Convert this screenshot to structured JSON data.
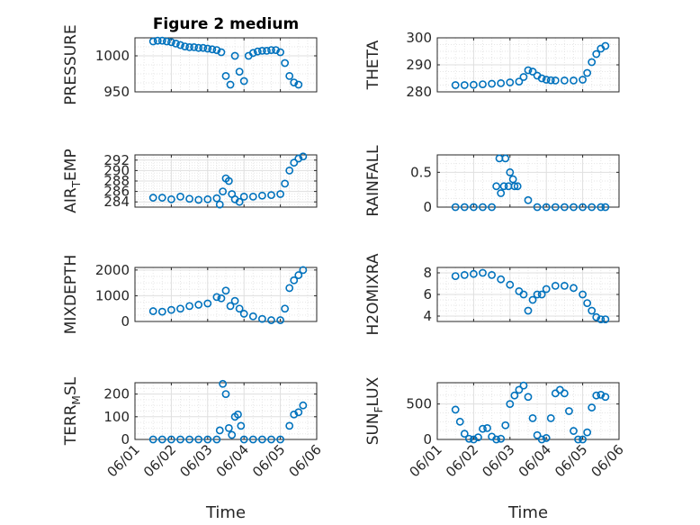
{
  "chart_data": [
    {
      "type": "scatter",
      "title": "Figure 2 medium",
      "ylabel": "PRESSURE",
      "xlim": [
        "06/01",
        "06/06"
      ],
      "ylim": [
        950,
        1025
      ],
      "yticks": [
        950,
        1000
      ],
      "xticks": [],
      "grid": true,
      "marker_color": "#0072BD",
      "series": [
        {
          "x": [
            "06/01 12:00",
            "06/01 15:00",
            "06/01 18:00",
            "06/01 21:00",
            "06/02 00:00",
            "06/02 03:00",
            "06/02 06:00",
            "06/02 09:00",
            "06/02 12:00",
            "06/02 15:00",
            "06/02 18:00",
            "06/02 21:00",
            "06/03 00:00",
            "06/03 03:00",
            "06/03 06:00",
            "06/03 09:00",
            "06/03 12:00",
            "06/03 15:00",
            "06/03 18:00",
            "06/03 21:00",
            "06/04 00:00",
            "06/04 03:00",
            "06/04 06:00",
            "06/04 09:00",
            "06/04 12:00",
            "06/04 15:00",
            "06/04 18:00",
            "06/04 21:00",
            "06/05 00:00",
            "06/05 03:00",
            "06/05 06:00",
            "06/05 09:00",
            "06/05 12:00"
          ],
          "y": [
            1020,
            1021,
            1021,
            1020,
            1019,
            1017,
            1015,
            1013,
            1012,
            1012,
            1011,
            1011,
            1010,
            1009,
            1008,
            1005,
            972,
            960,
            1000,
            978,
            965,
            1000,
            1004,
            1006,
            1007,
            1007,
            1008,
            1008,
            1005,
            990,
            972,
            963,
            960
          ]
        }
      ]
    },
    {
      "type": "scatter",
      "ylabel": "THETA",
      "xlim": [
        "06/01",
        "06/06"
      ],
      "ylim": [
        280,
        300
      ],
      "yticks": [
        280,
        290,
        300
      ],
      "grid": true,
      "marker_color": "#0072BD",
      "series": [
        {
          "x": [
            "06/01 12:00",
            "06/01 18:00",
            "06/02 00:00",
            "06/02 06:00",
            "06/02 12:00",
            "06/02 18:00",
            "06/03 00:00",
            "06/03 06:00",
            "06/03 09:00",
            "06/03 12:00",
            "06/03 15:00",
            "06/03 18:00",
            "06/03 21:00",
            "06/04 00:00",
            "06/04 03:00",
            "06/04 06:00",
            "06/04 12:00",
            "06/04 18:00",
            "06/05 00:00",
            "06/05 03:00",
            "06/05 06:00",
            "06/05 09:00",
            "06/05 12:00",
            "06/05 15:00"
          ],
          "y": [
            282.5,
            282.5,
            282.6,
            282.8,
            283.0,
            283.2,
            283.5,
            283.8,
            285.5,
            288.0,
            287.5,
            286.0,
            285.0,
            284.5,
            284.3,
            284.2,
            284.2,
            284.2,
            284.5,
            287.0,
            291.0,
            294.0,
            296.0,
            297.0
          ]
        }
      ]
    },
    {
      "type": "scatter",
      "ylabel": "AIR_TEMP",
      "ylabel_main": "AIR",
      "ylabel_sub": "T",
      "ylabel_rest": "EMP",
      "xlim": [
        "06/01",
        "06/06"
      ],
      "ylim": [
        283,
        293
      ],
      "yticks": [
        284,
        286,
        288,
        290,
        292
      ],
      "grid": true,
      "marker_color": "#0072BD",
      "series": [
        {
          "x": [
            "06/01 12:00",
            "06/01 18:00",
            "06/02 00:00",
            "06/02 06:00",
            "06/02 12:00",
            "06/02 18:00",
            "06/03 00:00",
            "06/03 06:00",
            "06/03 08:00",
            "06/03 10:00",
            "06/03 12:00",
            "06/03 14:00",
            "06/03 16:00",
            "06/03 18:00",
            "06/03 21:00",
            "06/04 00:00",
            "06/04 06:00",
            "06/04 12:00",
            "06/04 18:00",
            "06/05 00:00",
            "06/05 03:00",
            "06/05 06:00",
            "06/05 09:00",
            "06/05 12:00",
            "06/05 15:00"
          ],
          "y": [
            284.8,
            284.8,
            284.5,
            285.0,
            284.6,
            284.4,
            284.5,
            284.7,
            283.5,
            286.0,
            288.5,
            288.0,
            285.5,
            284.5,
            284.0,
            285.0,
            285.0,
            285.2,
            285.3,
            285.5,
            287.5,
            290.0,
            291.5,
            292.3,
            292.7
          ]
        }
      ]
    },
    {
      "type": "scatter",
      "ylabel": "RAINFALL",
      "xlim": [
        "06/01",
        "06/06"
      ],
      "ylim": [
        0,
        0.75
      ],
      "yticks": [
        0,
        0.5
      ],
      "grid": true,
      "marker_color": "#0072BD",
      "series": [
        {
          "x": [
            "06/01 12:00",
            "06/01 18:00",
            "06/02 00:00",
            "06/02 06:00",
            "06/02 12:00",
            "06/02 15:00",
            "06/02 17:00",
            "06/02 18:00",
            "06/02 20:00",
            "06/02 21:00",
            "06/02 23:00",
            "06/03 00:00",
            "06/03 02:00",
            "06/03 03:00",
            "06/03 05:00",
            "06/03 12:00",
            "06/03 18:00",
            "06/04 00:00",
            "06/04 06:00",
            "06/04 12:00",
            "06/04 18:00",
            "06/05 00:00",
            "06/05 06:00",
            "06/05 12:00",
            "06/05 15:00"
          ],
          "y": [
            0,
            0,
            0,
            0,
            0,
            0.3,
            0.7,
            0.2,
            0.3,
            0.7,
            0.3,
            0.5,
            0.4,
            0.3,
            0.3,
            0.1,
            0,
            0,
            0,
            0,
            0,
            0,
            0,
            0,
            0
          ]
        }
      ]
    },
    {
      "type": "scatter",
      "ylabel": "MIXDEPTH",
      "xlim": [
        "06/01",
        "06/06"
      ],
      "ylim": [
        0,
        2100
      ],
      "yticks": [
        0,
        1000,
        2000
      ],
      "grid": true,
      "marker_color": "#0072BD",
      "series": [
        {
          "x": [
            "06/01 12:00",
            "06/01 18:00",
            "06/02 00:00",
            "06/02 06:00",
            "06/02 12:00",
            "06/02 18:00",
            "06/03 00:00",
            "06/03 06:00",
            "06/03 09:00",
            "06/03 12:00",
            "06/03 15:00",
            "06/03 18:00",
            "06/03 21:00",
            "06/04 00:00",
            "06/04 06:00",
            "06/04 12:00",
            "06/04 18:00",
            "06/05 00:00",
            "06/05 03:00",
            "06/05 06:00",
            "06/05 09:00",
            "06/05 12:00",
            "06/05 15:00"
          ],
          "y": [
            400,
            380,
            450,
            500,
            600,
            650,
            700,
            950,
            900,
            1200,
            600,
            800,
            500,
            300,
            200,
            100,
            50,
            50,
            500,
            1300,
            1600,
            1800,
            2000
          ]
        }
      ]
    },
    {
      "type": "scatter",
      "ylabel": "H2OMIXRA",
      "xlim": [
        "06/01",
        "06/06"
      ],
      "ylim": [
        3.5,
        8.5
      ],
      "yticks": [
        4,
        6,
        8
      ],
      "grid": true,
      "marker_color": "#0072BD",
      "series": [
        {
          "x": [
            "06/01 12:00",
            "06/01 18:00",
            "06/02 00:00",
            "06/02 06:00",
            "06/02 12:00",
            "06/02 18:00",
            "06/03 00:00",
            "06/03 06:00",
            "06/03 09:00",
            "06/03 12:00",
            "06/03 15:00",
            "06/03 18:00",
            "06/03 21:00",
            "06/04 00:00",
            "06/04 06:00",
            "06/04 12:00",
            "06/04 18:00",
            "06/05 00:00",
            "06/05 03:00",
            "06/05 06:00",
            "06/05 09:00",
            "06/05 12:00",
            "06/05 15:00"
          ],
          "y": [
            7.7,
            7.8,
            7.9,
            8.0,
            7.8,
            7.4,
            6.9,
            6.3,
            6.0,
            4.5,
            5.5,
            6.0,
            6.0,
            6.5,
            6.8,
            6.8,
            6.6,
            6.0,
            5.2,
            4.5,
            3.9,
            3.7,
            3.7
          ]
        }
      ]
    },
    {
      "type": "scatter",
      "ylabel": "TERR_MSL",
      "ylabel_main": "TERR",
      "ylabel_sub": "M",
      "ylabel_rest": "SL",
      "xlim": [
        "06/01",
        "06/06"
      ],
      "ylim": [
        0,
        250
      ],
      "yticks": [
        0,
        100,
        200
      ],
      "xticks": [
        "06/01",
        "06/02",
        "06/03",
        "06/04",
        "06/05",
        "06/06"
      ],
      "xlabel": "Time",
      "grid": true,
      "marker_color": "#0072BD",
      "series": [
        {
          "x": [
            "06/01 12:00",
            "06/01 18:00",
            "06/02 00:00",
            "06/02 06:00",
            "06/02 12:00",
            "06/02 18:00",
            "06/03 00:00",
            "06/03 06:00",
            "06/03 08:00",
            "06/03 10:00",
            "06/03 12:00",
            "06/03 14:00",
            "06/03 16:00",
            "06/03 18:00",
            "06/03 20:00",
            "06/03 22:00",
            "06/04 00:00",
            "06/04 06:00",
            "06/04 12:00",
            "06/04 18:00",
            "06/05 00:00",
            "06/05 06:00",
            "06/05 09:00",
            "06/05 12:00",
            "06/05 15:00"
          ],
          "y": [
            0,
            0,
            0,
            0,
            0,
            0,
            0,
            0,
            40,
            245,
            200,
            50,
            20,
            100,
            110,
            60,
            0,
            0,
            0,
            0,
            0,
            60,
            110,
            120,
            150
          ]
        }
      ]
    },
    {
      "type": "scatter",
      "ylabel": "SUN_FLUX",
      "ylabel_main": "SUN",
      "ylabel_sub": "F",
      "ylabel_rest": "LUX",
      "xlim": [
        "06/01",
        "06/06"
      ],
      "ylim": [
        0,
        800
      ],
      "yticks": [
        0,
        500
      ],
      "xticks": [
        "06/01",
        "06/02",
        "06/03",
        "06/04",
        "06/05",
        "06/06"
      ],
      "xlabel": "Time",
      "grid": true,
      "marker_color": "#0072BD",
      "series": [
        {
          "x": [
            "06/01 12:00",
            "06/01 15:00",
            "06/01 18:00",
            "06/01 21:00",
            "06/02 00:00",
            "06/02 03:00",
            "06/02 06:00",
            "06/02 09:00",
            "06/02 12:00",
            "06/02 15:00",
            "06/02 18:00",
            "06/02 21:00",
            "06/03 00:00",
            "06/03 03:00",
            "06/03 06:00",
            "06/03 09:00",
            "06/03 12:00",
            "06/03 15:00",
            "06/03 18:00",
            "06/03 21:00",
            "06/04 00:00",
            "06/04 03:00",
            "06/04 06:00",
            "06/04 09:00",
            "06/04 12:00",
            "06/04 15:00",
            "06/04 18:00",
            "06/04 21:00",
            "06/05 00:00",
            "06/05 03:00",
            "06/05 06:00",
            "06/05 09:00",
            "06/05 12:00",
            "06/05 15:00"
          ],
          "y": [
            420,
            250,
            80,
            10,
            0,
            30,
            150,
            160,
            40,
            0,
            10,
            200,
            500,
            620,
            700,
            760,
            600,
            300,
            60,
            0,
            20,
            300,
            650,
            700,
            650,
            400,
            120,
            0,
            0,
            100,
            450,
            620,
            630,
            600
          ]
        }
      ]
    }
  ]
}
